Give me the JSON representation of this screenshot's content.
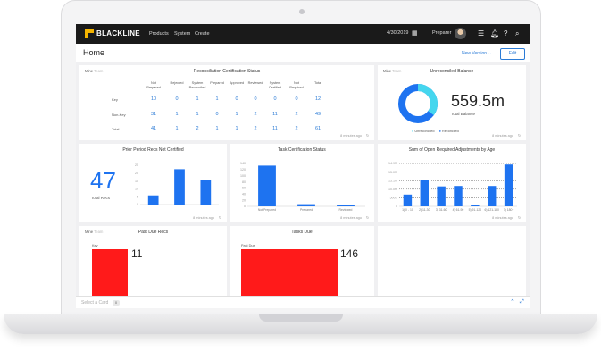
{
  "app": {
    "brand": "BLACKLINE"
  },
  "nav": {
    "items": [
      "Products",
      "System",
      "Create"
    ]
  },
  "topbar": {
    "date": "4/30/2019",
    "role": "Preparer"
  },
  "page": {
    "title": "Home",
    "new_version": "New Version",
    "edit": "Edit"
  },
  "colors": {
    "primary": "#2b7bd6",
    "bar": "#1e73f0",
    "unreconciled": "#45d6ee",
    "reconciled": "#1e73f0",
    "alert": "#ff1a1a"
  },
  "recon": {
    "title": "Reconciliation Certification Status",
    "tabs": [
      "Mine",
      "Team"
    ],
    "columns": [
      "Not\nPrepared",
      "Rejected",
      "System\nReconciled",
      "Prepared",
      "Approved",
      "Reviewed",
      "System\nCertified",
      "Not\nRequired",
      "Total"
    ],
    "rows": [
      {
        "label": "Key",
        "values": [
          "10",
          "0",
          "1",
          "1",
          "0",
          "0",
          "0",
          "0",
          "12"
        ]
      },
      {
        "label": "Non-Key",
        "values": [
          "31",
          "1",
          "1",
          "0",
          "1",
          "2",
          "11",
          "2",
          "49"
        ]
      },
      {
        "label": "Total",
        "values": [
          "41",
          "1",
          "2",
          "1",
          "1",
          "2",
          "11",
          "2",
          "61"
        ]
      }
    ],
    "updated": "8 minutes ago"
  },
  "unrec": {
    "title": "Unreconciled Balance",
    "tabs": [
      "Mine",
      "Team"
    ],
    "value": "559.5m",
    "caption": "Total Balance",
    "legend": [
      "Unreconciled",
      "Reconciled"
    ],
    "unreconciled_fraction": 0.35,
    "updated": "8 minutes ago"
  },
  "prior": {
    "title": "Prior Period Recs Not Certified",
    "big": "47",
    "caption": "Total Recs",
    "chart_data": {
      "type": "bar",
      "values": [
        7,
        27,
        19
      ],
      "ylim": [
        0,
        30
      ],
      "yticks": [
        "0",
        "5",
        "10",
        "15",
        "20",
        "25"
      ]
    },
    "updated": "8 minutes ago"
  },
  "taskcert": {
    "title": "Task Certification Status",
    "chart_data": {
      "type": "bar",
      "categories": [
        "Not Prepared",
        "Prepared",
        "Reviewed"
      ],
      "values": [
        152,
        8,
        6
      ],
      "ylim": [
        0,
        160
      ],
      "yticks": [
        "0",
        "20",
        "40",
        "60",
        "80",
        "100",
        "120",
        "140"
      ]
    },
    "updated": "8 minutes ago"
  },
  "adjust": {
    "title": "Sum of Open Required Adjustments by Age",
    "chart_data": {
      "type": "bar",
      "categories": [
        "1) 0 - 10",
        "2) 11-30",
        "3) 31-60",
        "4) 61-90",
        "5) 91-120",
        "6) 121-180",
        "7) 180+"
      ],
      "values": [
        5.5,
        12.5,
        9.3,
        9.5,
        0.8,
        9.5,
        19.5
      ],
      "ylim": [
        0,
        20
      ],
      "yticks": [
        "0",
        "500K",
        "10.0M",
        "13.1M",
        "15.0M",
        "14.9M"
      ]
    },
    "updated": "8 minutes ago"
  },
  "pastdue": {
    "title": "Past Due Recs",
    "tabs": [
      "Mine",
      "Team"
    ],
    "label": "Key",
    "value": "11"
  },
  "tasksdue": {
    "title": "Tasks Due",
    "label": "Past Due",
    "value": "146"
  },
  "bottom": {
    "select_card": "Select a Card",
    "count": "0"
  }
}
